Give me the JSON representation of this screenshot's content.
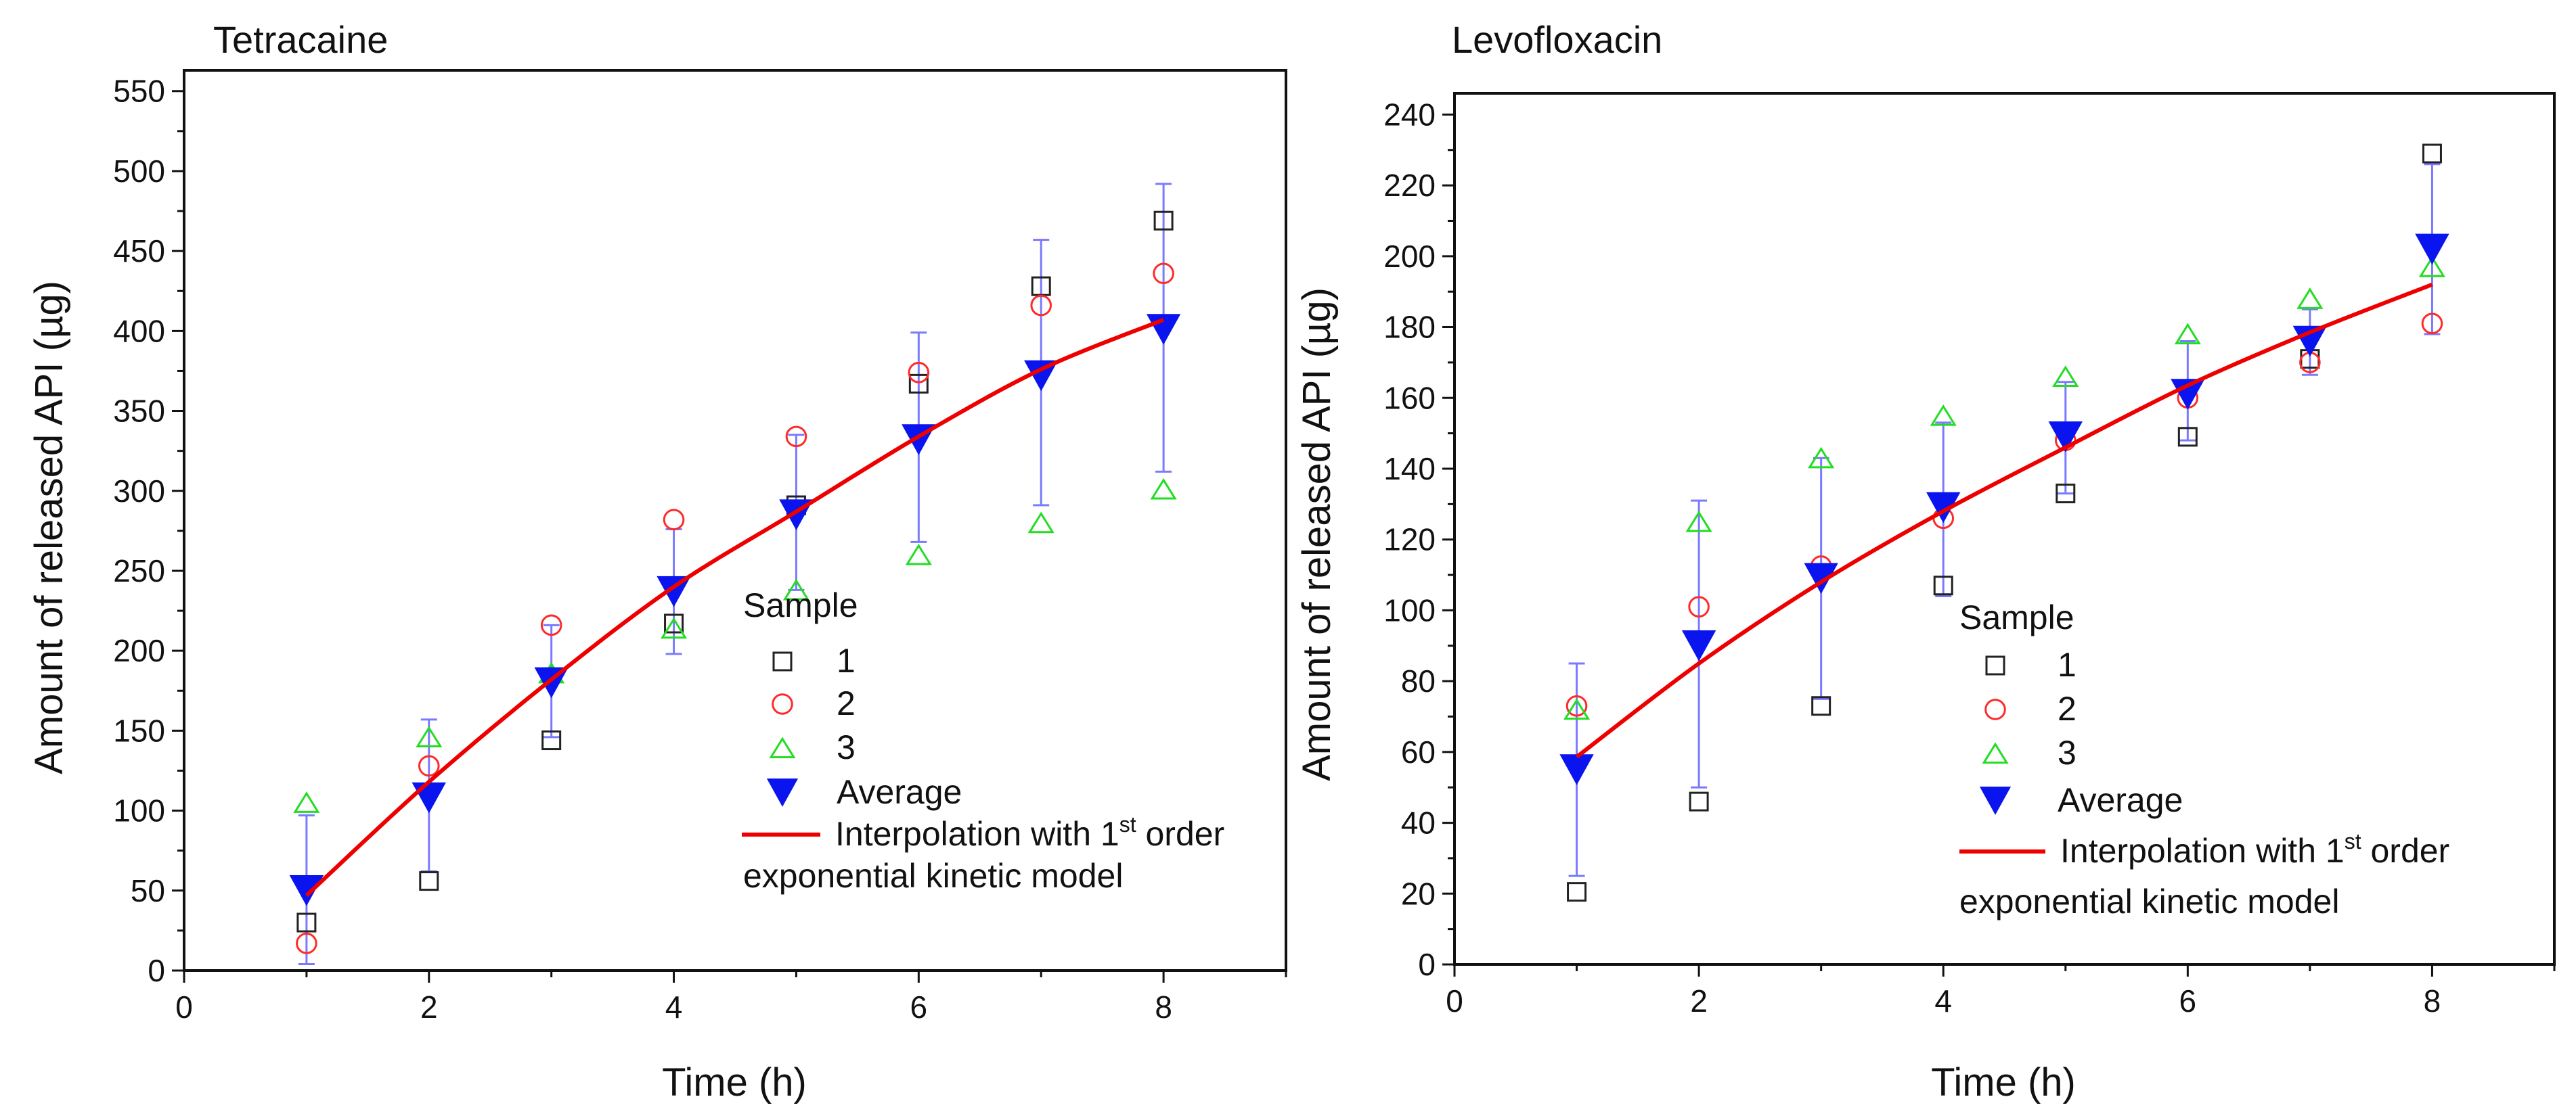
{
  "colors": {
    "sample1": "#222222",
    "sample2": "#ff2a2a",
    "sample3": "#22dd22",
    "average": "#0a14ee",
    "errorbar": "#7a7aff",
    "fit": "#ee0000"
  },
  "chart_data": [
    {
      "type": "scatter",
      "title": "Tetracaine",
      "xlabel": "Time (h)",
      "ylabel": "Amount of released API  (µg)",
      "xlim": [
        0,
        9
      ],
      "ylim": [
        0,
        563
      ],
      "xticks": [
        0,
        2,
        4,
        6,
        8
      ],
      "yticks": [
        0,
        50,
        100,
        150,
        200,
        250,
        300,
        350,
        400,
        450,
        500,
        550
      ],
      "x": [
        1,
        2,
        3,
        4,
        5,
        6,
        7,
        8
      ],
      "series": [
        {
          "name": "1",
          "marker": "square",
          "values": [
            30,
            56,
            144,
            217,
            291,
            367,
            428,
            469
          ]
        },
        {
          "name": "2",
          "marker": "circle",
          "values": [
            17,
            128,
            216,
            282,
            334,
            374,
            416,
            436
          ]
        },
        {
          "name": "3",
          "marker": "triangle-up",
          "values": [
            105,
            146,
            186,
            214,
            238,
            260,
            280,
            301
          ]
        },
        {
          "name": "Average",
          "marker": "triangle-down",
          "values": [
            50,
            108,
            180,
            237,
            285,
            332,
            372,
            401
          ],
          "error_upper": [
            97,
            157,
            216,
            276,
            335,
            399,
            457,
            492
          ],
          "error_lower": [
            4,
            62,
            146,
            198,
            238,
            268,
            291,
            312
          ]
        },
        {
          "name": "Interpolation with 1st order exponential kinetic model",
          "type": "line",
          "values": [
            47,
            118,
            182,
            240,
            287,
            334,
            376,
            407
          ]
        }
      ],
      "legend": {
        "title": "Sample",
        "labels": [
          "1",
          "2",
          "3",
          "Average"
        ],
        "fit_parts": [
          "Interpolation with 1",
          "st",
          " order",
          "exponential kinetic model"
        ],
        "placement": "bottom-right"
      }
    },
    {
      "type": "scatter",
      "title": "Levofloxacin",
      "xlabel": "Time (h)",
      "ylabel": "Amount of released API  (µg)",
      "xlim": [
        0,
        9
      ],
      "ylim": [
        0,
        246
      ],
      "xticks": [
        0,
        2,
        4,
        6,
        8
      ],
      "yticks": [
        0,
        20,
        40,
        60,
        80,
        100,
        120,
        140,
        160,
        180,
        200,
        220,
        240
      ],
      "x": [
        1,
        2,
        3,
        4,
        5,
        6,
        7,
        8
      ],
      "series": [
        {
          "name": "1",
          "marker": "square",
          "values": [
            20.5,
            46,
            73,
            107,
            133,
            149,
            171,
            229
          ]
        },
        {
          "name": "2",
          "marker": "circle",
          "values": [
            73,
            101,
            112.5,
            126,
            148,
            160,
            170,
            181
          ]
        },
        {
          "name": "3",
          "marker": "triangle-up",
          "values": [
            72,
            125,
            143,
            155,
            166,
            178,
            188,
            197
          ]
        },
        {
          "name": "Average",
          "marker": "triangle-down",
          "values": [
            55,
            90,
            109,
            129,
            149,
            161,
            176,
            202
          ],
          "error_upper": [
            85,
            131,
            143,
            153,
            164.5,
            176,
            185,
            226
          ],
          "error_lower": [
            25,
            50,
            75,
            104,
            133,
            148,
            166.5,
            178
          ]
        },
        {
          "name": "Interpolation with 1st order exponential kinetic model",
          "type": "line",
          "values": [
            58.6,
            85,
            108,
            128,
            146,
            163.5,
            178.5,
            192
          ]
        }
      ],
      "legend": {
        "title": "Sample",
        "labels": [
          "1",
          "2",
          "3",
          "Average"
        ],
        "fit_parts": [
          "Interpolation with 1",
          "st",
          " order",
          "exponential kinetic model"
        ],
        "placement": "bottom-right"
      }
    }
  ]
}
